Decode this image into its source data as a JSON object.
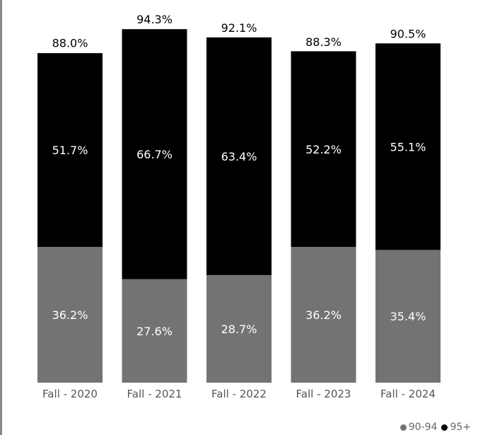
{
  "chart_data": {
    "type": "bar",
    "stacked": true,
    "categories": [
      "Fall - 2020",
      "Fall - 2021",
      "Fall - 2022",
      "Fall - 2023",
      "Fall - 2024"
    ],
    "series": [
      {
        "name": "90-94",
        "color": "#737373",
        "values": [
          36.2,
          27.6,
          28.7,
          36.2,
          35.4
        ],
        "labels": [
          "36.2%",
          "27.6%",
          "28.7%",
          "36.2%",
          "35.4%"
        ]
      },
      {
        "name": "95+",
        "color": "#000000",
        "values": [
          51.7,
          66.7,
          63.4,
          52.2,
          55.1
        ],
        "labels": [
          "51.7%",
          "66.7%",
          "63.4%",
          "52.2%",
          "55.1%"
        ]
      }
    ],
    "totals": [
      88.0,
      94.3,
      92.1,
      88.3,
      90.5
    ],
    "total_labels": [
      "88.0%",
      "94.3%",
      "92.1%",
      "88.3%",
      "90.5%"
    ],
    "ylim": [
      0,
      100
    ],
    "grid": false,
    "legend_position": "bottom-right"
  }
}
